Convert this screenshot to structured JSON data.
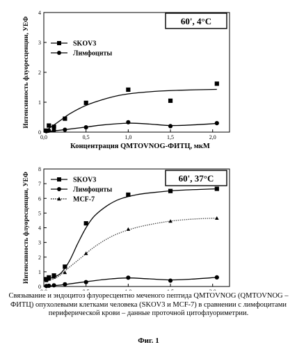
{
  "chart_data": [
    {
      "type": "scatter",
      "condition_label": "60', 4°C",
      "xlabel": "Концентрация QMTOVNOG-ФИТЦ, мкМ",
      "ylabel": "Интенсивность флуоресценции, УЕФ",
      "xlim": [
        0,
        2.2
      ],
      "ylim": [
        0,
        4
      ],
      "xticks": [
        "0,0",
        "0,5",
        "1,0",
        "1,5",
        "2,0"
      ],
      "yticks": [
        "0",
        "1",
        "2",
        "3",
        "4"
      ],
      "legend_position": "top-left",
      "series": [
        {
          "name": "SKOV3",
          "marker": "square",
          "x": [
            0.03,
            0.06,
            0.12,
            0.25,
            0.5,
            1.0,
            1.5,
            2.05
          ],
          "y": [
            0.05,
            0.22,
            0.18,
            0.45,
            0.98,
            1.42,
            1.05,
            1.62
          ],
          "fit": [
            [
              0.0,
              0.0
            ],
            [
              0.1,
              0.2
            ],
            [
              0.2,
              0.4
            ],
            [
              0.3,
              0.6
            ],
            [
              0.45,
              0.83
            ],
            [
              0.6,
              1.0
            ],
            [
              0.8,
              1.17
            ],
            [
              1.0,
              1.28
            ],
            [
              1.3,
              1.36
            ],
            [
              1.6,
              1.4
            ],
            [
              2.05,
              1.43
            ]
          ]
        },
        {
          "name": "Лимфоциты",
          "marker": "circle",
          "x": [
            0.03,
            0.06,
            0.12,
            0.25,
            0.5,
            1.0,
            1.5,
            2.05
          ],
          "y": [
            0.03,
            0.05,
            0.06,
            0.08,
            0.16,
            0.33,
            0.2,
            0.3
          ],
          "fit": [
            [
              0.0,
              0.0
            ],
            [
              0.15,
              0.05
            ],
            [
              0.3,
              0.1
            ],
            [
              0.5,
              0.17
            ],
            [
              0.7,
              0.24
            ],
            [
              1.0,
              0.3
            ],
            [
              1.25,
              0.27
            ],
            [
              1.5,
              0.22
            ],
            [
              1.75,
              0.24
            ],
            [
              2.05,
              0.29
            ]
          ]
        }
      ]
    },
    {
      "type": "scatter",
      "condition_label": "60', 37°C",
      "xlabel": "Концентрация QMTOVNOG-ФИТЦ, мкМ",
      "ylabel": "Интенсивность флуоресценции, УЕФ",
      "xlim": [
        0,
        2.2
      ],
      "ylim": [
        0,
        8
      ],
      "xticks": [
        "0,0",
        "0,5",
        "1,0",
        "1,5",
        "2,0"
      ],
      "yticks": [
        "0",
        "1",
        "2",
        "3",
        "4",
        "5",
        "6",
        "7",
        "8"
      ],
      "legend_position": "top-left",
      "series": [
        {
          "name": "SKOV3",
          "marker": "square",
          "x": [
            0.03,
            0.06,
            0.12,
            0.25,
            0.5,
            1.0,
            1.5,
            2.05
          ],
          "y": [
            0.5,
            0.62,
            0.75,
            1.35,
            4.3,
            6.25,
            6.5,
            6.65
          ],
          "fit": [
            [
              0.03,
              0.5
            ],
            [
              0.1,
              0.6
            ],
            [
              0.2,
              0.9
            ],
            [
              0.3,
              1.7
            ],
            [
              0.4,
              2.9
            ],
            [
              0.5,
              4.0
            ],
            [
              0.6,
              4.8
            ],
            [
              0.75,
              5.5
            ],
            [
              0.9,
              5.95
            ],
            [
              1.1,
              6.25
            ],
            [
              1.3,
              6.4
            ],
            [
              1.6,
              6.55
            ],
            [
              2.05,
              6.65
            ]
          ]
        },
        {
          "name": "Лимфоциты",
          "marker": "circle",
          "x": [
            0.03,
            0.06,
            0.12,
            0.25,
            0.5,
            1.0,
            1.5,
            2.05
          ],
          "y": [
            0.03,
            0.05,
            0.08,
            0.15,
            0.3,
            0.6,
            0.4,
            0.62
          ],
          "fit": [
            [
              0.0,
              0.0
            ],
            [
              0.2,
              0.1
            ],
            [
              0.4,
              0.25
            ],
            [
              0.6,
              0.4
            ],
            [
              0.8,
              0.52
            ],
            [
              1.0,
              0.58
            ],
            [
              1.25,
              0.52
            ],
            [
              1.5,
              0.45
            ],
            [
              1.75,
              0.5
            ],
            [
              2.05,
              0.62
            ]
          ]
        },
        {
          "name": "MCF-7",
          "marker": "triangle",
          "x": [
            0.03,
            0.06,
            0.12,
            0.25,
            0.5,
            1.0,
            1.5,
            2.05
          ],
          "y": [
            0.4,
            0.5,
            0.65,
            0.95,
            2.25,
            3.9,
            4.45,
            4.65
          ],
          "fit": [
            [
              0.03,
              0.4
            ],
            [
              0.15,
              0.6
            ],
            [
              0.3,
              1.3
            ],
            [
              0.45,
              2.0
            ],
            [
              0.6,
              2.7
            ],
            [
              0.8,
              3.4
            ],
            [
              1.0,
              3.85
            ],
            [
              1.2,
              4.15
            ],
            [
              1.5,
              4.45
            ],
            [
              1.8,
              4.6
            ],
            [
              2.05,
              4.65
            ]
          ]
        }
      ]
    }
  ],
  "caption": "Связывание и эндоцитоз флуоресцентно меченого пептида QMTOVNOG (QMTOVNOG – ФИТЦ) опухолевыми клетками человека (SKOV3 и MCF-7) в сравнении с лимфоцитами периферической крови – данные проточной цитофлуориметрии.",
  "figure_label": "Фиг. 1"
}
